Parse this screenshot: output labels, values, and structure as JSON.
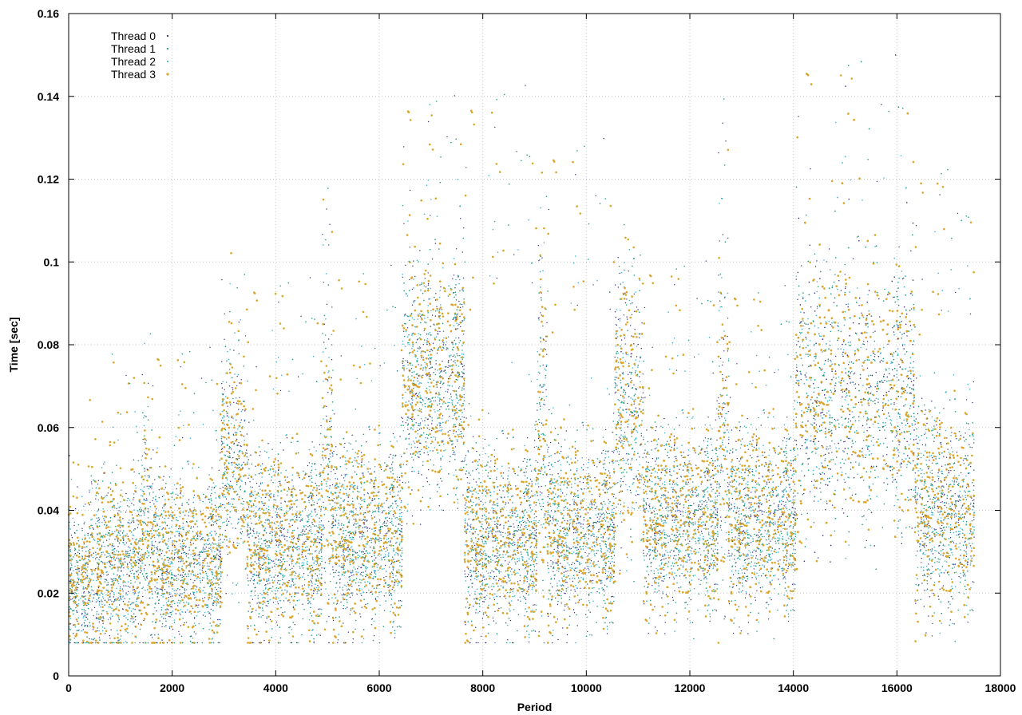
{
  "chart_data": {
    "type": "scatter",
    "title": "",
    "xlabel": "Period",
    "ylabel": "Time [sec]",
    "xlim": [
      0,
      18000
    ],
    "ylim": [
      0,
      0.16
    ],
    "xticks": [
      "0",
      "2000",
      "4000",
      "6000",
      "8000",
      "10000",
      "12000",
      "14000",
      "16000",
      "18000"
    ],
    "yticks": [
      "0",
      "0.02",
      "0.04",
      "0.06",
      "0.08",
      "0.1",
      "0.12",
      "0.14",
      "0.16"
    ],
    "xtick_values": [
      0,
      2000,
      4000,
      6000,
      8000,
      10000,
      12000,
      14000,
      16000,
      18000
    ],
    "ytick_values": [
      0,
      0.02,
      0.04,
      0.06,
      0.08,
      0.1,
      0.12,
      0.14,
      0.16
    ],
    "grid": true,
    "legend_position": "top-left",
    "series": [
      {
        "name": "Thread 0",
        "color": "#3b2a7a"
      },
      {
        "name": "Thread 1",
        "color": "#1f9e7a"
      },
      {
        "name": "Thread 2",
        "color": "#3fb4d6"
      },
      {
        "name": "Thread 3",
        "color": "#dba62a"
      }
    ],
    "segments": [
      {
        "x": [
          0,
          400
        ],
        "level": 0.022,
        "spread": 0.008,
        "max": 0.06
      },
      {
        "x": [
          400,
          1400
        ],
        "level": 0.027,
        "spread": 0.01,
        "max": 0.08
      },
      {
        "x": [
          1400,
          1600
        ],
        "level": 0.036,
        "spread": 0.013,
        "max": 0.092
      },
      {
        "x": [
          1600,
          2950
        ],
        "level": 0.028,
        "spread": 0.01,
        "max": 0.08
      },
      {
        "x": [
          2950,
          3450
        ],
        "level": 0.052,
        "spread": 0.013,
        "max": 0.106
      },
      {
        "x": [
          3450,
          4900
        ],
        "level": 0.032,
        "spread": 0.011,
        "max": 0.097
      },
      {
        "x": [
          4900,
          5100
        ],
        "level": 0.05,
        "spread": 0.02,
        "max": 0.12
      },
      {
        "x": [
          5100,
          6450
        ],
        "level": 0.034,
        "spread": 0.011,
        "max": 0.1
      },
      {
        "x": [
          6450,
          7650
        ],
        "level": 0.072,
        "spread": 0.014,
        "max": 0.141
      },
      {
        "x": [
          7650,
          9050
        ],
        "level": 0.033,
        "spread": 0.011,
        "max": 0.144
      },
      {
        "x": [
          9050,
          9250
        ],
        "level": 0.06,
        "spread": 0.02,
        "max": 0.127
      },
      {
        "x": [
          9250,
          10550
        ],
        "level": 0.035,
        "spread": 0.011,
        "max": 0.131
      },
      {
        "x": [
          10550,
          11100
        ],
        "level": 0.065,
        "spread": 0.016,
        "max": 0.109
      },
      {
        "x": [
          11100,
          12550
        ],
        "level": 0.038,
        "spread": 0.011,
        "max": 0.101
      },
      {
        "x": [
          12550,
          12750
        ],
        "level": 0.06,
        "spread": 0.02,
        "max": 0.142
      },
      {
        "x": [
          12750,
          14050
        ],
        "level": 0.038,
        "spread": 0.011,
        "max": 0.095
      },
      {
        "x": [
          14050,
          16350
        ],
        "level": 0.068,
        "spread": 0.016,
        "max": 0.151
      },
      {
        "x": [
          16350,
          17500
        ],
        "level": 0.04,
        "spread": 0.012,
        "max": 0.125
      }
    ]
  }
}
